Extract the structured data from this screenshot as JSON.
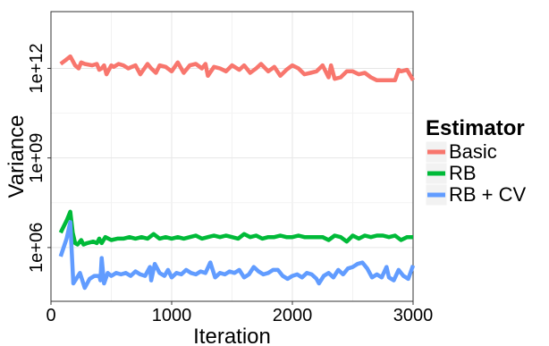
{
  "chart_data": {
    "type": "line",
    "xlabel": "Iteration",
    "ylabel": "Variance",
    "xlim": [
      0,
      3000
    ],
    "ylim_log10": [
      4.2,
      13.9
    ],
    "y_scale": "log10",
    "x_ticks": [
      0,
      1000,
      2000,
      3000
    ],
    "x_tick_labels": [
      "0",
      "1000",
      "2000",
      "3000"
    ],
    "y_ticks_log10": [
      6,
      9,
      12
    ],
    "y_tick_labels": [
      "1e+06",
      "1e+09",
      "1e+12"
    ],
    "grid": true,
    "legend": {
      "title": "Estimator",
      "placement": "right",
      "entries": [
        "Basic",
        "RB",
        "RB + CV"
      ]
    },
    "series": [
      {
        "name": "Basic",
        "color": "#f8766d",
        "x": [
          80,
          130,
          160,
          200,
          230,
          250,
          280,
          340,
          380,
          400,
          420,
          440,
          460,
          500,
          520,
          560,
          600,
          640,
          700,
          740,
          800,
          830,
          870,
          900,
          950,
          1000,
          1050,
          1100,
          1150,
          1200,
          1250,
          1280,
          1300,
          1350,
          1400,
          1450,
          1500,
          1560,
          1600,
          1650,
          1700,
          1740,
          1800,
          1850,
          1900,
          1950,
          2000,
          2050,
          2100,
          2150,
          2200,
          2250,
          2300,
          2320,
          2350,
          2400,
          2450,
          2500,
          2550,
          2600,
          2650,
          2700,
          2750,
          2800,
          2850,
          2880,
          2900,
          2950,
          3000
        ],
        "log10_values": [
          12.15,
          12.3,
          12.4,
          12.1,
          12.0,
          12.2,
          12.15,
          12.1,
          12.15,
          11.95,
          12.0,
          12.1,
          11.8,
          12.1,
          12.05,
          12.15,
          12.1,
          12.0,
          12.1,
          11.8,
          12.15,
          12.0,
          11.85,
          12.1,
          12.05,
          11.9,
          12.2,
          11.85,
          12.1,
          12.15,
          12.0,
          12.15,
          11.75,
          12.05,
          12.0,
          11.9,
          12.1,
          11.95,
          12.1,
          11.85,
          12.0,
          12.15,
          11.9,
          12.05,
          11.75,
          11.95,
          12.1,
          12.0,
          11.8,
          11.85,
          11.9,
          12.1,
          11.7,
          12.1,
          11.65,
          11.7,
          11.9,
          11.9,
          11.8,
          11.85,
          11.7,
          11.6,
          11.6,
          11.6,
          11.6,
          11.95,
          11.9,
          11.95,
          11.6
        ]
      },
      {
        "name": "RB",
        "color": "#00ba38",
        "x": [
          80,
          130,
          160,
          180,
          200,
          220,
          250,
          270,
          300,
          350,
          380,
          400,
          420,
          450,
          500,
          550,
          600,
          650,
          700,
          750,
          800,
          850,
          900,
          950,
          1000,
          1050,
          1100,
          1150,
          1200,
          1250,
          1300,
          1350,
          1400,
          1450,
          1500,
          1550,
          1600,
          1650,
          1700,
          1750,
          1800,
          1850,
          1900,
          1950,
          2000,
          2050,
          2100,
          2150,
          2200,
          2250,
          2300,
          2350,
          2400,
          2450,
          2500,
          2550,
          2600,
          2650,
          2700,
          2750,
          2800,
          2850,
          2900,
          2950,
          3000
        ],
        "log10_values": [
          6.5,
          6.9,
          7.2,
          6.5,
          6.15,
          6.1,
          6.25,
          6.1,
          6.15,
          6.2,
          6.15,
          6.3,
          6.15,
          6.35,
          6.25,
          6.3,
          6.3,
          6.35,
          6.3,
          6.35,
          6.3,
          6.45,
          6.3,
          6.35,
          6.3,
          6.35,
          6.3,
          6.35,
          6.4,
          6.3,
          6.35,
          6.4,
          6.35,
          6.4,
          6.35,
          6.3,
          6.45,
          6.35,
          6.4,
          6.3,
          6.35,
          6.35,
          6.4,
          6.35,
          6.35,
          6.4,
          6.35,
          6.35,
          6.35,
          6.35,
          6.25,
          6.4,
          6.35,
          6.2,
          6.4,
          6.3,
          6.4,
          6.35,
          6.4,
          6.4,
          6.35,
          6.4,
          6.25,
          6.35,
          6.35
        ]
      },
      {
        "name": "RB + CV",
        "color": "#619cff",
        "x": [
          80,
          130,
          160,
          185,
          210,
          240,
          280,
          320,
          360,
          400,
          410,
          420,
          440,
          470,
          500,
          540,
          580,
          620,
          660,
          700,
          740,
          780,
          820,
          830,
          860,
          900,
          940,
          970,
          1000,
          1040,
          1080,
          1120,
          1160,
          1200,
          1240,
          1280,
          1320,
          1360,
          1400,
          1440,
          1480,
          1520,
          1560,
          1600,
          1640,
          1680,
          1720,
          1760,
          1800,
          1840,
          1880,
          1920,
          1960,
          2000,
          2040,
          2080,
          2120,
          2160,
          2200,
          2220,
          2260,
          2300,
          2340,
          2380,
          2420,
          2460,
          2500,
          2540,
          2580,
          2620,
          2660,
          2700,
          2740,
          2780,
          2800,
          2840,
          2880,
          2920,
          2960,
          3000
        ],
        "log10_values": [
          5.7,
          6.3,
          6.85,
          4.8,
          4.95,
          5.15,
          4.65,
          4.95,
          5.05,
          5.05,
          4.9,
          5.65,
          4.8,
          5.15,
          5.05,
          5.15,
          5.1,
          5.15,
          5.05,
          5.2,
          5.1,
          5.05,
          5.35,
          4.9,
          5.45,
          5.15,
          5.05,
          5.25,
          5.0,
          5.15,
          5.1,
          5.25,
          5.15,
          5.1,
          5.2,
          5.15,
          5.5,
          5.0,
          5.15,
          5.1,
          5.2,
          5.15,
          5.25,
          5.0,
          5.1,
          5.35,
          5.2,
          5.1,
          5.15,
          5.25,
          5.25,
          5.05,
          4.95,
          5.05,
          5.1,
          5.0,
          5.15,
          5.1,
          4.95,
          4.8,
          5.05,
          5.15,
          5.0,
          5.25,
          5.1,
          5.3,
          5.35,
          5.45,
          5.5,
          5.3,
          5.0,
          5.1,
          5.0,
          5.35,
          5.0,
          4.9,
          5.25,
          5.05,
          4.95,
          5.4
        ]
      }
    ]
  }
}
